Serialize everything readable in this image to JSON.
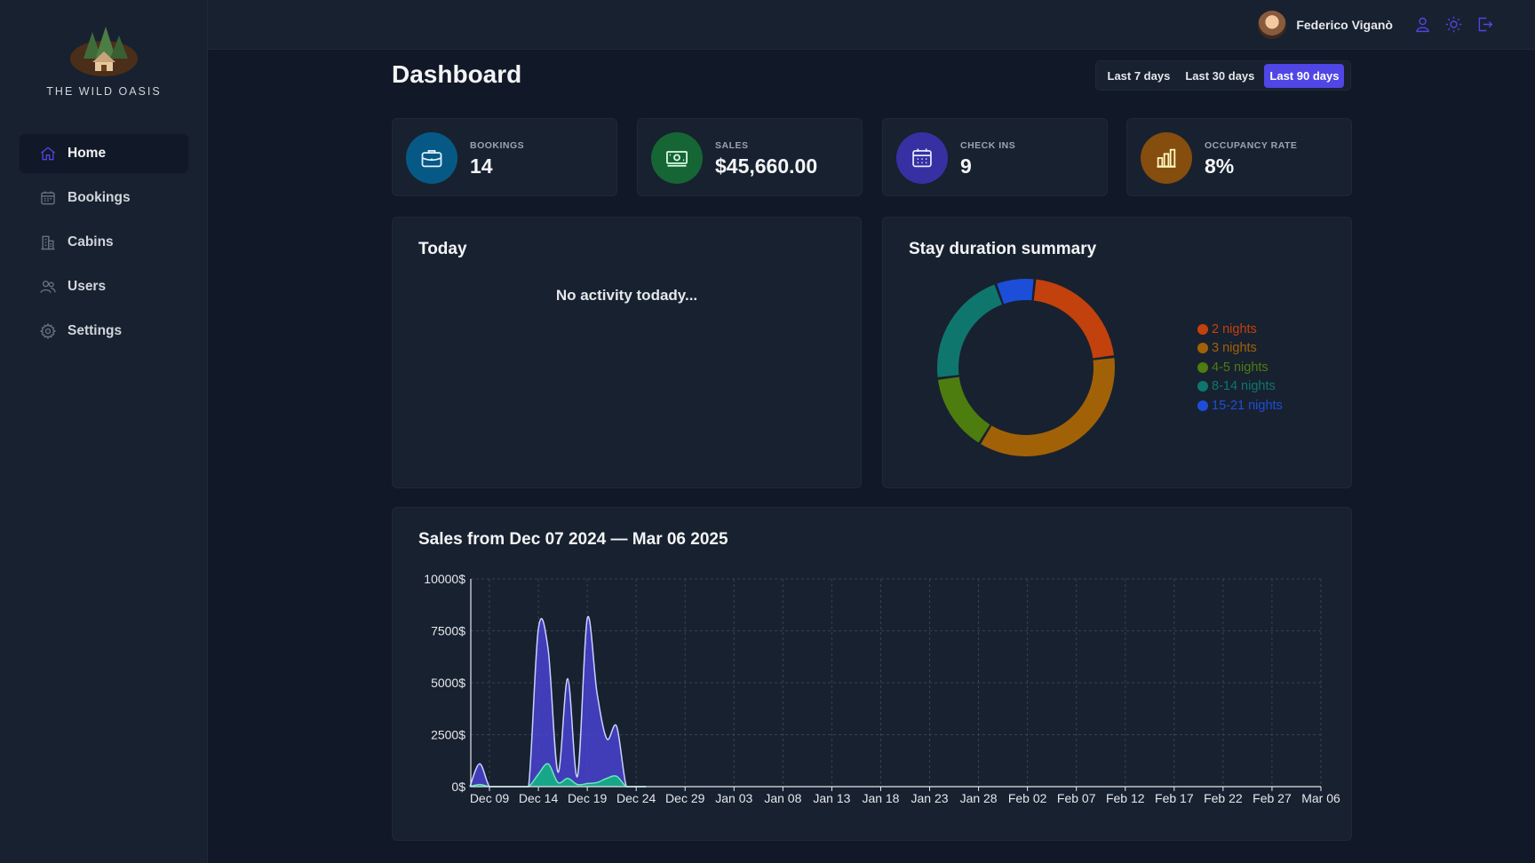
{
  "app": {
    "name": "THE WILD OASIS"
  },
  "sidebar": {
    "items": [
      {
        "label": "Home",
        "icon": "home-icon",
        "active": true
      },
      {
        "label": "Bookings",
        "icon": "calendar-icon"
      },
      {
        "label": "Cabins",
        "icon": "building-icon"
      },
      {
        "label": "Users",
        "icon": "users-icon"
      },
      {
        "label": "Settings",
        "icon": "gear-icon"
      }
    ]
  },
  "header": {
    "user_name": "Federico Viganò",
    "icons": [
      "user-icon",
      "sun-icon",
      "logout-icon"
    ]
  },
  "page": {
    "title": "Dashboard",
    "filters": [
      {
        "label": "Last 7 days"
      },
      {
        "label": "Last 30 days"
      },
      {
        "label": "Last 90 days",
        "active": true
      }
    ]
  },
  "stats": [
    {
      "label": "BOOKINGS",
      "value": "14",
      "icon": "briefcase-icon",
      "color": "#075985"
    },
    {
      "label": "SALES",
      "value": "$45,660.00",
      "icon": "banknotes-icon",
      "color": "#166534"
    },
    {
      "label": "CHECK INS",
      "value": "9",
      "icon": "calendar-days-icon",
      "color": "#3730a3"
    },
    {
      "label": "OCCUPANCY RATE",
      "value": "8%",
      "icon": "chart-bar-icon",
      "color": "#854d0e"
    }
  ],
  "today": {
    "title": "Today",
    "empty_text": "No activity todady..."
  },
  "duration": {
    "title": "Stay duration summary"
  },
  "sales": {
    "title": "Sales from Dec 07 2024 — Mar 06 2025"
  },
  "chart_data": [
    {
      "type": "pie",
      "title": "Stay duration summary",
      "donut": true,
      "legend_position": "right",
      "categories": [
        "2 nights",
        "3 nights",
        "4-5 nights",
        "8-14 nights",
        "15-21 nights"
      ],
      "values": [
        3,
        5,
        2,
        3,
        1
      ],
      "colors": [
        "#c2410c",
        "#a16207",
        "#4d7c0f",
        "#0f766e",
        "#1d4ed8"
      ]
    },
    {
      "type": "area",
      "title": "Sales from Dec 07 2024 — Mar 06 2025",
      "x_ticks": [
        "Dec 09",
        "Dec 14",
        "Dec 19",
        "Dec 24",
        "Dec 29",
        "Jan 03",
        "Jan 08",
        "Jan 13",
        "Jan 18",
        "Jan 23",
        "Jan 28",
        "Feb 02",
        "Feb 07",
        "Feb 12",
        "Feb 17",
        "Feb 22",
        "Feb 27",
        "Mar 06"
      ],
      "y_ticks": [
        "0$",
        "2500$",
        "5000$",
        "7500$",
        "10000$"
      ],
      "ylim": [
        0,
        10000
      ],
      "grid": true,
      "x": [
        "Dec 07",
        "Dec 08",
        "Dec 09",
        "Dec 10",
        "Dec 11",
        "Dec 12",
        "Dec 13",
        "Dec 14",
        "Dec 15",
        "Dec 16",
        "Dec 17",
        "Dec 18",
        "Dec 19",
        "Dec 20",
        "Dec 21",
        "Dec 22",
        "Dec 23",
        "Dec 24",
        "Dec 25"
      ],
      "series": [
        {
          "values": [
            0,
            1100,
            0,
            0,
            0,
            0,
            0,
            7600,
            6600,
            700,
            5200,
            500,
            8100,
            4500,
            2300,
            2900,
            0,
            0,
            0
          ],
          "color": "#4f46e5"
        },
        {
          "values": [
            0,
            100,
            0,
            0,
            0,
            0,
            0,
            600,
            1100,
            200,
            400,
            100,
            150,
            200,
            400,
            500,
            0,
            0,
            0
          ],
          "color": "#10b981"
        }
      ]
    }
  ]
}
